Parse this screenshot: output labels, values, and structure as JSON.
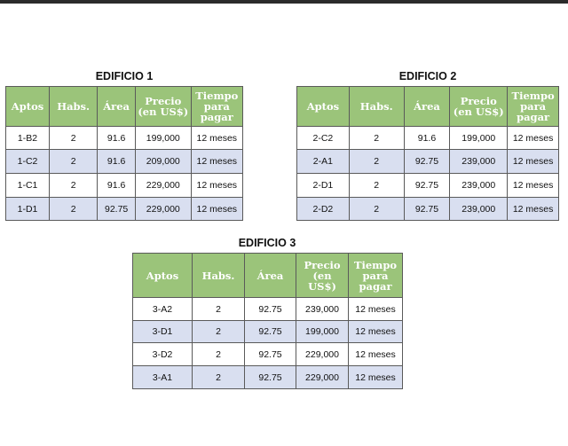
{
  "header": {
    "aptos": "Aptos",
    "habs": "Habs.",
    "area": "Área",
    "precio_two_line": [
      "Precio",
      "(en US$)"
    ],
    "precio_three_line": [
      "Precio",
      "(en",
      "US$)"
    ],
    "tiempo": [
      "Tiempo",
      "para",
      "pagar"
    ]
  },
  "edificio1": {
    "title": "EDIFICIO 1",
    "rows": [
      [
        "1-B2",
        "2",
        "91.6",
        "199,000",
        "12 meses"
      ],
      [
        "1-C2",
        "2",
        "91.6",
        "209,000",
        "12 meses"
      ],
      [
        "1-C1",
        "2",
        "91.6",
        "229,000",
        "12 meses"
      ],
      [
        "1-D1",
        "2",
        "92.75",
        "229,000",
        "12 meses"
      ]
    ]
  },
  "edificio2": {
    "title": "EDIFICIO 2",
    "rows": [
      [
        "2-C2",
        "2",
        "91.6",
        "199,000",
        "12 meses"
      ],
      [
        "2-A1",
        "2",
        "92.75",
        "239,000",
        "12 meses"
      ],
      [
        "2-D1",
        "2",
        "92.75",
        "239,000",
        "12 meses"
      ],
      [
        "2-D2",
        "2",
        "92.75",
        "239,000",
        "12 meses"
      ]
    ]
  },
  "edificio3": {
    "title": "EDIFICIO 3",
    "rows": [
      [
        "3-A2",
        "2",
        "92.75",
        "239,000",
        "12 meses"
      ],
      [
        "3-D1",
        "2",
        "92.75",
        "199,000",
        "12 meses"
      ],
      [
        "3-D2",
        "2",
        "92.75",
        "229,000",
        "12 meses"
      ],
      [
        "3-A1",
        "2",
        "92.75",
        "229,000",
        "12 meses"
      ]
    ]
  }
}
